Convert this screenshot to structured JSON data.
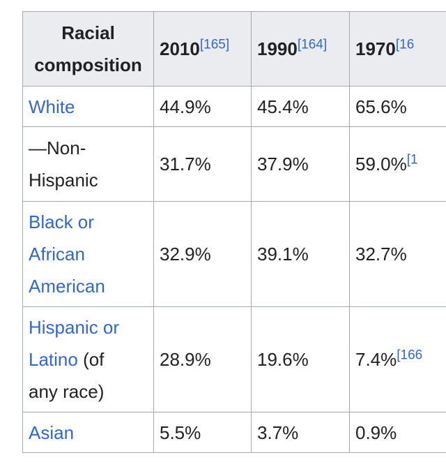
{
  "table": {
    "header": {
      "label_line1": "Racial",
      "label_line2": "composition",
      "years": [
        {
          "year": "2010",
          "ref": "[165]"
        },
        {
          "year": "1990",
          "ref": "[164]"
        },
        {
          "year": "1970",
          "ref": "[16"
        }
      ]
    },
    "rows": [
      {
        "label": "White",
        "v2010": "44.9%",
        "v1990": "45.4%",
        "v1970": "65.6%",
        "v1970_ref": ""
      },
      {
        "label_line1": "—Non-",
        "label_line2": "Hispanic",
        "v2010": "31.7%",
        "v1990": "37.9%",
        "v1970": "59.0%",
        "v1970_ref": "[1"
      },
      {
        "label_line1": "Black or",
        "label_line2": "African",
        "label_line3": "American",
        "v2010": "32.9%",
        "v1990": "39.1%",
        "v1970": "32.7%",
        "v1970_ref": ""
      },
      {
        "label_line1": "Hispanic or",
        "label_line2_link": "Latino",
        "label_line2_rest": " (of",
        "label_line3": "any race)",
        "v2010": "28.9%",
        "v1990": "19.6%",
        "v1970": "7.4%",
        "v1970_ref": "[166"
      },
      {
        "label": "Asian",
        "v2010": "5.5%",
        "v1990": "3.7%",
        "v1970": "0.9%",
        "v1970_ref": ""
      }
    ]
  },
  "colors": {
    "link": "#3366cc",
    "header_bg": "#eaecf0",
    "border": "#a2a9b1",
    "text": "#202122"
  }
}
